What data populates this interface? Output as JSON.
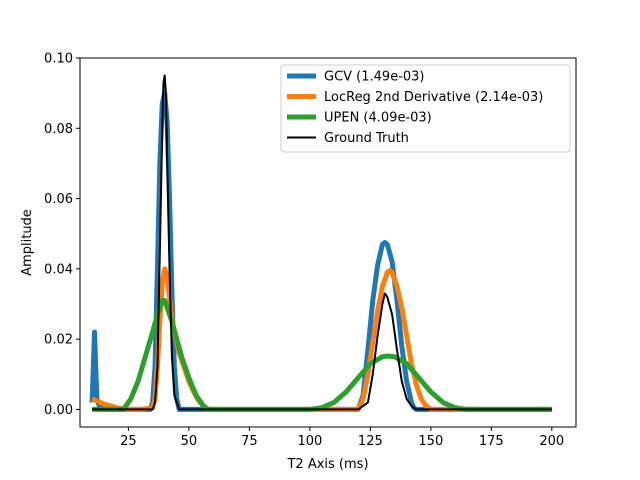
{
  "chart_data": {
    "type": "line",
    "xlabel": "T2 Axis (ms)",
    "ylabel": "Amplitude",
    "xlim": [
      5,
      210
    ],
    "ylim": [
      -0.005,
      0.1
    ],
    "xticks": [
      25,
      50,
      75,
      100,
      125,
      150,
      175,
      200
    ],
    "xtick_labels": [
      "25",
      "50",
      "75",
      "100",
      "125",
      "150",
      "175",
      "200"
    ],
    "yticks": [
      0.0,
      0.02,
      0.04,
      0.06,
      0.08,
      0.1
    ],
    "ytick_labels": [
      "0.00",
      "0.02",
      "0.04",
      "0.06",
      "0.08",
      "0.10"
    ],
    "grid": false,
    "legend_position": "top-right",
    "series": [
      {
        "name": "GCV  (1.49e-03)",
        "color": "#1f77b4",
        "x": [
          10,
          10.5,
          11,
          11.5,
          12,
          13,
          15,
          20,
          25,
          30,
          34,
          35,
          36,
          37,
          38,
          39,
          40,
          41,
          42,
          43,
          44,
          45,
          46,
          50,
          60,
          80,
          100,
          110,
          120,
          122,
          124,
          126,
          128,
          130,
          131,
          132,
          134,
          136,
          138,
          140,
          142,
          143,
          144,
          150,
          160,
          180,
          200
        ],
        "y": [
          0.002,
          0.012,
          0.022,
          0.012,
          0.003,
          0.001,
          0.0,
          0.0,
          0.0,
          0.0,
          0.0,
          0.002,
          0.012,
          0.04,
          0.07,
          0.087,
          0.09,
          0.082,
          0.06,
          0.033,
          0.012,
          0.003,
          0.0,
          0.0,
          0.0,
          0.0,
          0.0,
          0.0,
          0.0,
          0.004,
          0.017,
          0.031,
          0.041,
          0.047,
          0.0475,
          0.047,
          0.042,
          0.031,
          0.018,
          0.008,
          0.002,
          0.0005,
          0.0,
          0.0,
          0.0,
          0.0,
          0.0
        ]
      },
      {
        "name": "LocReg  2nd Derivative (2.14e-03)",
        "color": "#ff7f0e",
        "x": [
          10,
          15,
          20,
          25,
          30,
          35,
          36,
          37,
          38,
          39,
          40,
          41,
          42,
          43,
          44,
          45,
          46,
          48,
          50,
          52,
          54,
          56,
          58,
          60,
          80,
          100,
          120,
          122,
          124,
          126,
          128,
          130,
          132,
          133,
          134,
          136,
          138,
          140,
          142,
          144,
          146,
          148,
          150,
          155,
          160,
          180,
          200
        ],
        "y": [
          0.003,
          0.0015,
          0.0005,
          0.0,
          0.0,
          0.0005,
          0.003,
          0.012,
          0.025,
          0.036,
          0.04,
          0.038,
          0.032,
          0.026,
          0.022,
          0.019,
          0.016,
          0.012,
          0.008,
          0.005,
          0.0025,
          0.001,
          0.0,
          0.0,
          0.0,
          0.0,
          0.0,
          0.003,
          0.01,
          0.019,
          0.028,
          0.035,
          0.039,
          0.0395,
          0.039,
          0.035,
          0.029,
          0.021,
          0.013,
          0.007,
          0.003,
          0.001,
          0.0,
          0.0,
          0.0,
          0.0,
          0.0
        ]
      },
      {
        "name": "UPEN  (4.09e-03)",
        "color": "#2ca02c",
        "x": [
          10,
          20,
          23,
          26,
          29,
          32,
          35,
          37,
          39,
          40,
          41,
          43,
          45,
          47,
          50,
          53,
          56,
          58,
          60,
          80,
          100,
          105,
          110,
          115,
          120,
          125,
          130,
          132,
          135,
          140,
          145,
          150,
          155,
          160,
          165,
          170,
          180,
          200
        ],
        "y": [
          0.0,
          0.0,
          0.0,
          0.003,
          0.008,
          0.015,
          0.022,
          0.027,
          0.031,
          0.031,
          0.029,
          0.025,
          0.02,
          0.015,
          0.009,
          0.004,
          0.001,
          0.0,
          0.0,
          0.0,
          0.0,
          0.0005,
          0.002,
          0.005,
          0.009,
          0.013,
          0.015,
          0.0152,
          0.015,
          0.013,
          0.009,
          0.005,
          0.002,
          0.0005,
          0.0,
          0.0,
          0.0,
          0.0
        ]
      },
      {
        "name": "Ground Truth",
        "color": "#000000",
        "x": [
          10,
          20,
          30,
          35,
          36,
          37,
          38,
          39,
          39.5,
          40,
          40.5,
          41,
          42,
          43,
          44,
          46,
          50,
          60,
          80,
          100,
          120,
          124,
          126,
          128,
          130,
          131,
          132,
          134,
          136,
          138,
          140,
          142,
          144,
          150,
          160,
          180,
          200
        ],
        "y": [
          0.0,
          0.0,
          0.0,
          0.0,
          0.002,
          0.012,
          0.045,
          0.08,
          0.093,
          0.095,
          0.09,
          0.072,
          0.04,
          0.015,
          0.004,
          0.0,
          0.0,
          0.0,
          0.0,
          0.0,
          0.0,
          0.002,
          0.01,
          0.021,
          0.03,
          0.033,
          0.032,
          0.027,
          0.017,
          0.008,
          0.003,
          0.001,
          0.0,
          0.0,
          0.0,
          0.0,
          0.0
        ]
      }
    ]
  }
}
